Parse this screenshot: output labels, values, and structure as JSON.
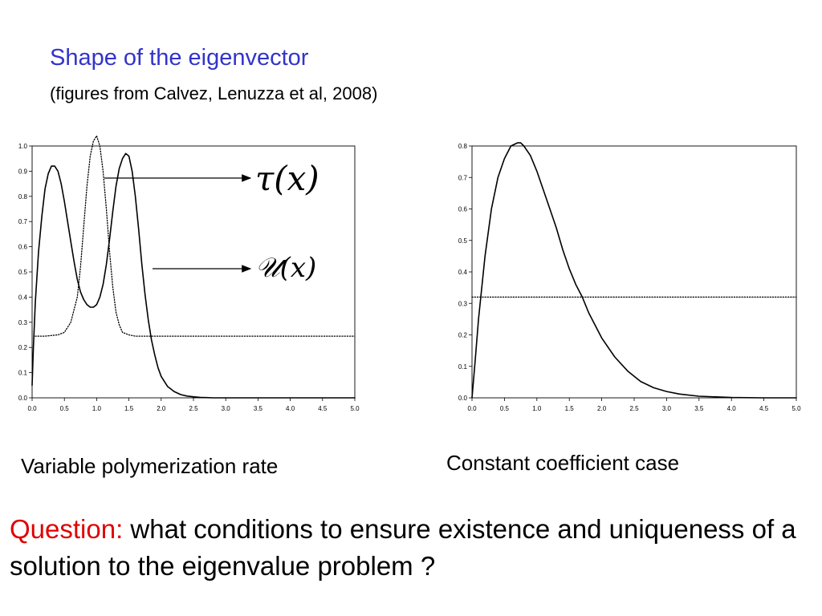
{
  "title": "Shape of the eigenvector",
  "subtitle": "(figures from Calvez, Lenuzza et al, 2008)",
  "annotations": {
    "tau": "τ(x)",
    "u": "𝒰(x)"
  },
  "captions": {
    "left": "Variable polymerization rate",
    "right": "Constant coefficient case"
  },
  "question": {
    "label": "Question:",
    "text": "what conditions to ensure existence and uniqueness of a solution to the eigenvalue problem ?"
  },
  "colors": {
    "title": "#3333cc",
    "question_label": "#e00000",
    "curve": "#000000"
  },
  "chart_data": [
    {
      "type": "line",
      "title": "",
      "xlabel": "",
      "ylabel": "",
      "xlim": [
        0,
        5
      ],
      "ylim": [
        0,
        1.0
      ],
      "x_ticks": [
        "0.0",
        "0.5",
        "1.0",
        "1.5",
        "2.0",
        "2.5",
        "3.0",
        "3.5",
        "4.0",
        "4.5",
        "5.0"
      ],
      "y_ticks": [
        "0.0",
        "0.1",
        "0.2",
        "0.3",
        "0.4",
        "0.5",
        "0.6",
        "0.7",
        "0.8",
        "0.9",
        "1.0"
      ],
      "grid": false,
      "series": [
        {
          "style": "solid",
          "x": [
            0.0,
            0.02,
            0.05,
            0.1,
            0.15,
            0.2,
            0.25,
            0.3,
            0.35,
            0.4,
            0.45,
            0.5,
            0.55,
            0.6,
            0.65,
            0.7,
            0.75,
            0.8,
            0.85,
            0.9,
            0.95,
            1.0,
            1.05,
            1.1,
            1.15,
            1.2,
            1.25,
            1.3,
            1.35,
            1.4,
            1.45,
            1.5,
            1.55,
            1.6,
            1.65,
            1.7,
            1.75,
            1.8,
            1.85,
            1.9,
            1.95,
            2.0,
            2.1,
            2.2,
            2.3,
            2.4,
            2.5,
            2.6,
            2.7,
            2.8,
            3.0,
            3.5,
            4.0,
            4.5,
            5.0
          ],
          "y": [
            0.05,
            0.2,
            0.38,
            0.58,
            0.72,
            0.83,
            0.89,
            0.92,
            0.92,
            0.9,
            0.85,
            0.78,
            0.7,
            0.62,
            0.54,
            0.47,
            0.42,
            0.39,
            0.37,
            0.36,
            0.36,
            0.37,
            0.4,
            0.45,
            0.53,
            0.63,
            0.74,
            0.84,
            0.91,
            0.95,
            0.97,
            0.96,
            0.9,
            0.8,
            0.67,
            0.53,
            0.41,
            0.31,
            0.23,
            0.17,
            0.12,
            0.085,
            0.045,
            0.025,
            0.013,
            0.007,
            0.004,
            0.002,
            0.001,
            0.0,
            0.0,
            0.0,
            0.0,
            0.0,
            0.0
          ]
        },
        {
          "style": "dotted",
          "x": [
            0.05,
            0.2,
            0.4,
            0.5,
            0.6,
            0.7,
            0.75,
            0.8,
            0.85,
            0.9,
            0.95,
            1.0,
            1.05,
            1.1,
            1.15,
            1.2,
            1.25,
            1.3,
            1.35,
            1.4,
            1.5,
            1.6,
            1.8,
            2.0,
            3.0,
            4.0,
            5.0
          ],
          "y": [
            0.245,
            0.245,
            0.25,
            0.26,
            0.3,
            0.4,
            0.52,
            0.68,
            0.84,
            0.96,
            1.02,
            1.04,
            1.0,
            0.9,
            0.75,
            0.58,
            0.44,
            0.34,
            0.29,
            0.26,
            0.25,
            0.245,
            0.245,
            0.245,
            0.245,
            0.245,
            0.245
          ]
        }
      ]
    },
    {
      "type": "line",
      "title": "",
      "xlabel": "",
      "ylabel": "",
      "xlim": [
        0,
        5
      ],
      "ylim": [
        0,
        0.8
      ],
      "x_ticks": [
        "0.0",
        "0.5",
        "1.0",
        "1.5",
        "2.0",
        "2.5",
        "3.0",
        "3.5",
        "4.0",
        "4.5",
        "5.0"
      ],
      "y_ticks": [
        "0.0",
        "0.1",
        "0.2",
        "0.3",
        "0.4",
        "0.5",
        "0.6",
        "0.7",
        "0.8"
      ],
      "grid": false,
      "series": [
        {
          "style": "solid",
          "x": [
            0.0,
            0.05,
            0.1,
            0.2,
            0.3,
            0.4,
            0.5,
            0.6,
            0.7,
            0.75,
            0.8,
            0.9,
            1.0,
            1.1,
            1.2,
            1.3,
            1.4,
            1.5,
            1.6,
            1.7,
            1.8,
            2.0,
            2.2,
            2.4,
            2.6,
            2.8,
            3.0,
            3.2,
            3.5,
            4.0,
            4.5,
            5.0
          ],
          "y": [
            0.0,
            0.12,
            0.25,
            0.45,
            0.6,
            0.7,
            0.76,
            0.8,
            0.81,
            0.81,
            0.8,
            0.77,
            0.72,
            0.66,
            0.6,
            0.54,
            0.47,
            0.41,
            0.36,
            0.32,
            0.27,
            0.19,
            0.13,
            0.085,
            0.052,
            0.032,
            0.02,
            0.012,
            0.005,
            0.001,
            0.0,
            0.0
          ]
        },
        {
          "style": "dotted",
          "x": [
            0.0,
            5.0
          ],
          "y": [
            0.32,
            0.32
          ]
        }
      ]
    }
  ]
}
